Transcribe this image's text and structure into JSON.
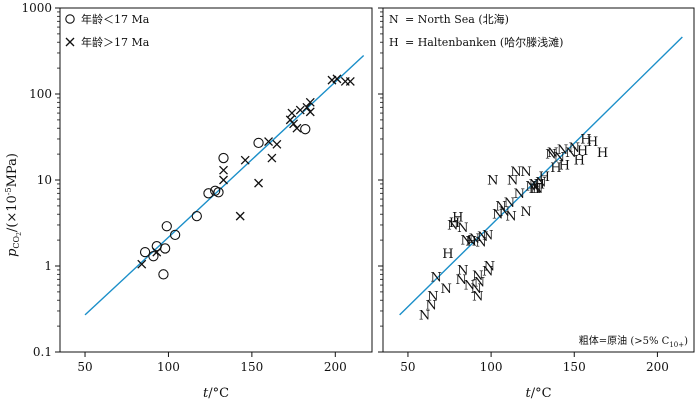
{
  "figure": {
    "ylabel_symbol": "p",
    "ylabel_sub": "CO",
    "ylabel_subsub": "2",
    "ylabel_unit_open": "/(×10",
    "ylabel_unit_exp": "-5",
    "ylabel_unit_close": "MPa)",
    "line_color": "#1b8fc9"
  },
  "chart_data": [
    {
      "type": "scatter",
      "xlabel_symbol": "t",
      "xlabel_unit": "/°C",
      "xlim": [
        35,
        222
      ],
      "ylim": [
        0.1,
        1000
      ],
      "yscale": "log",
      "xticks": [
        50,
        100,
        150,
        200
      ],
      "yticks": [
        0.1,
        1,
        10,
        100,
        1000
      ],
      "ytick_labels": [
        "0.1",
        "1",
        "10",
        "100",
        "1000"
      ],
      "legend_position": "top-left",
      "series": [
        {
          "name": "年龄＜17 Ma",
          "marker": "circle",
          "points": [
            [
              86,
              1.45
            ],
            [
              91,
              1.3
            ],
            [
              93,
              1.7
            ],
            [
              97,
              0.8
            ],
            [
              98,
              1.6
            ],
            [
              99,
              2.9
            ],
            [
              104,
              2.3
            ],
            [
              117,
              3.8
            ],
            [
              124,
              7.0
            ],
            [
              128,
              7.5
            ],
            [
              130,
              7.2
            ],
            [
              133,
              18
            ],
            [
              154,
              27
            ],
            [
              182,
              39
            ]
          ]
        },
        {
          "name": "年龄＞17 Ma",
          "marker": "x",
          "points": [
            [
              84,
              1.05
            ],
            [
              93,
              1.45
            ],
            [
              133,
              10
            ],
            [
              133,
              13
            ],
            [
              143,
              3.8
            ],
            [
              146,
              17
            ],
            [
              154,
              9.2
            ],
            [
              160,
              28
            ],
            [
              162,
              18
            ],
            [
              165,
              26
            ],
            [
              173,
              50
            ],
            [
              174,
              60
            ],
            [
              175,
              45
            ],
            [
              177,
              40
            ],
            [
              179,
              65
            ],
            [
              183,
              70
            ],
            [
              185,
              80
            ],
            [
              185,
              62
            ],
            [
              198,
              145
            ],
            [
              201,
              150
            ],
            [
              206,
              140
            ],
            [
              209,
              140
            ]
          ]
        }
      ],
      "fit_line": {
        "x": [
          50,
          217
        ],
        "y": [
          0.27,
          280
        ]
      }
    },
    {
      "type": "scatter",
      "xlabel_symbol": "t",
      "xlabel_unit": "/°C",
      "xlim": [
        35,
        222
      ],
      "ylim": [
        0.1,
        1000
      ],
      "yscale": "log",
      "xticks": [
        50,
        100,
        150,
        200
      ],
      "legend_position": "top-left",
      "legend": [
        {
          "marker": "N",
          "text": "= North  Sea (北海)"
        },
        {
          "marker": "H",
          "text": "= Haltenbanken (哈尔滕浅滩)"
        }
      ],
      "annotation": {
        "text": "粗体=原油 (>5% C",
        "sub": "10+",
        "close": ")"
      },
      "series": [
        {
          "name": "N",
          "marker": "N",
          "points": [
            [
              60,
              0.27
            ],
            [
              64,
              0.35
            ],
            [
              65,
              0.45
            ],
            [
              67,
              0.74
            ],
            [
              73,
              0.55
            ],
            [
              77,
              3.0
            ],
            [
              82,
              0.7
            ],
            [
              83,
              0.9
            ],
            [
              83,
              2.8
            ],
            [
              85,
              2.0
            ],
            [
              87,
              0.6
            ],
            [
              88,
              1.95
            ],
            [
              90,
              2.1
            ],
            [
              91,
              0.55
            ],
            [
              92,
              0.78
            ],
            [
              92,
              0.45
            ],
            [
              93,
              0.65
            ],
            [
              94,
              1.9
            ],
            [
              95,
              2.2
            ],
            [
              98,
              2.3
            ],
            [
              98,
              0.88
            ],
            [
              99,
              1.0
            ],
            [
              101,
              10.0
            ],
            [
              104,
              4.0
            ],
            [
              106,
              5.0
            ],
            [
              108,
              4.3
            ],
            [
              111,
              5.5
            ],
            [
              112,
              3.8
            ],
            [
              113,
              10.0
            ],
            [
              115,
              12.5
            ],
            [
              117,
              7.0
            ],
            [
              121,
              12.5
            ],
            [
              121,
              4.3
            ],
            [
              124,
              8.5
            ],
            [
              126,
              9.0
            ],
            [
              127,
              8.0
            ],
            [
              128,
              8.0
            ],
            [
              130,
              9.5
            ],
            [
              136,
              20.0
            ],
            [
              137,
              21.0
            ],
            [
              141,
              18.5
            ],
            [
              143,
              22.5
            ],
            [
              148,
              21.0
            ],
            [
              150,
              24.0
            ]
          ]
        },
        {
          "name": "H",
          "marker": "H",
          "points": [
            [
              74,
              1.4
            ],
            [
              78,
              3.2
            ],
            [
              80,
              3.7
            ],
            [
              88,
              1.95
            ],
            [
              126,
              8.0
            ],
            [
              129,
              9.0
            ],
            [
              132,
              11.0
            ],
            [
              139,
              14.0
            ],
            [
              144,
              15.0
            ],
            [
              153,
              17.0
            ],
            [
              155,
              22.0
            ],
            [
              157,
              30.0
            ],
            [
              161,
              28.0
            ],
            [
              167,
              21.0
            ]
          ]
        }
      ],
      "fit_line": {
        "x": [
          45,
          215
        ],
        "y": [
          0.27,
          460
        ]
      }
    }
  ]
}
